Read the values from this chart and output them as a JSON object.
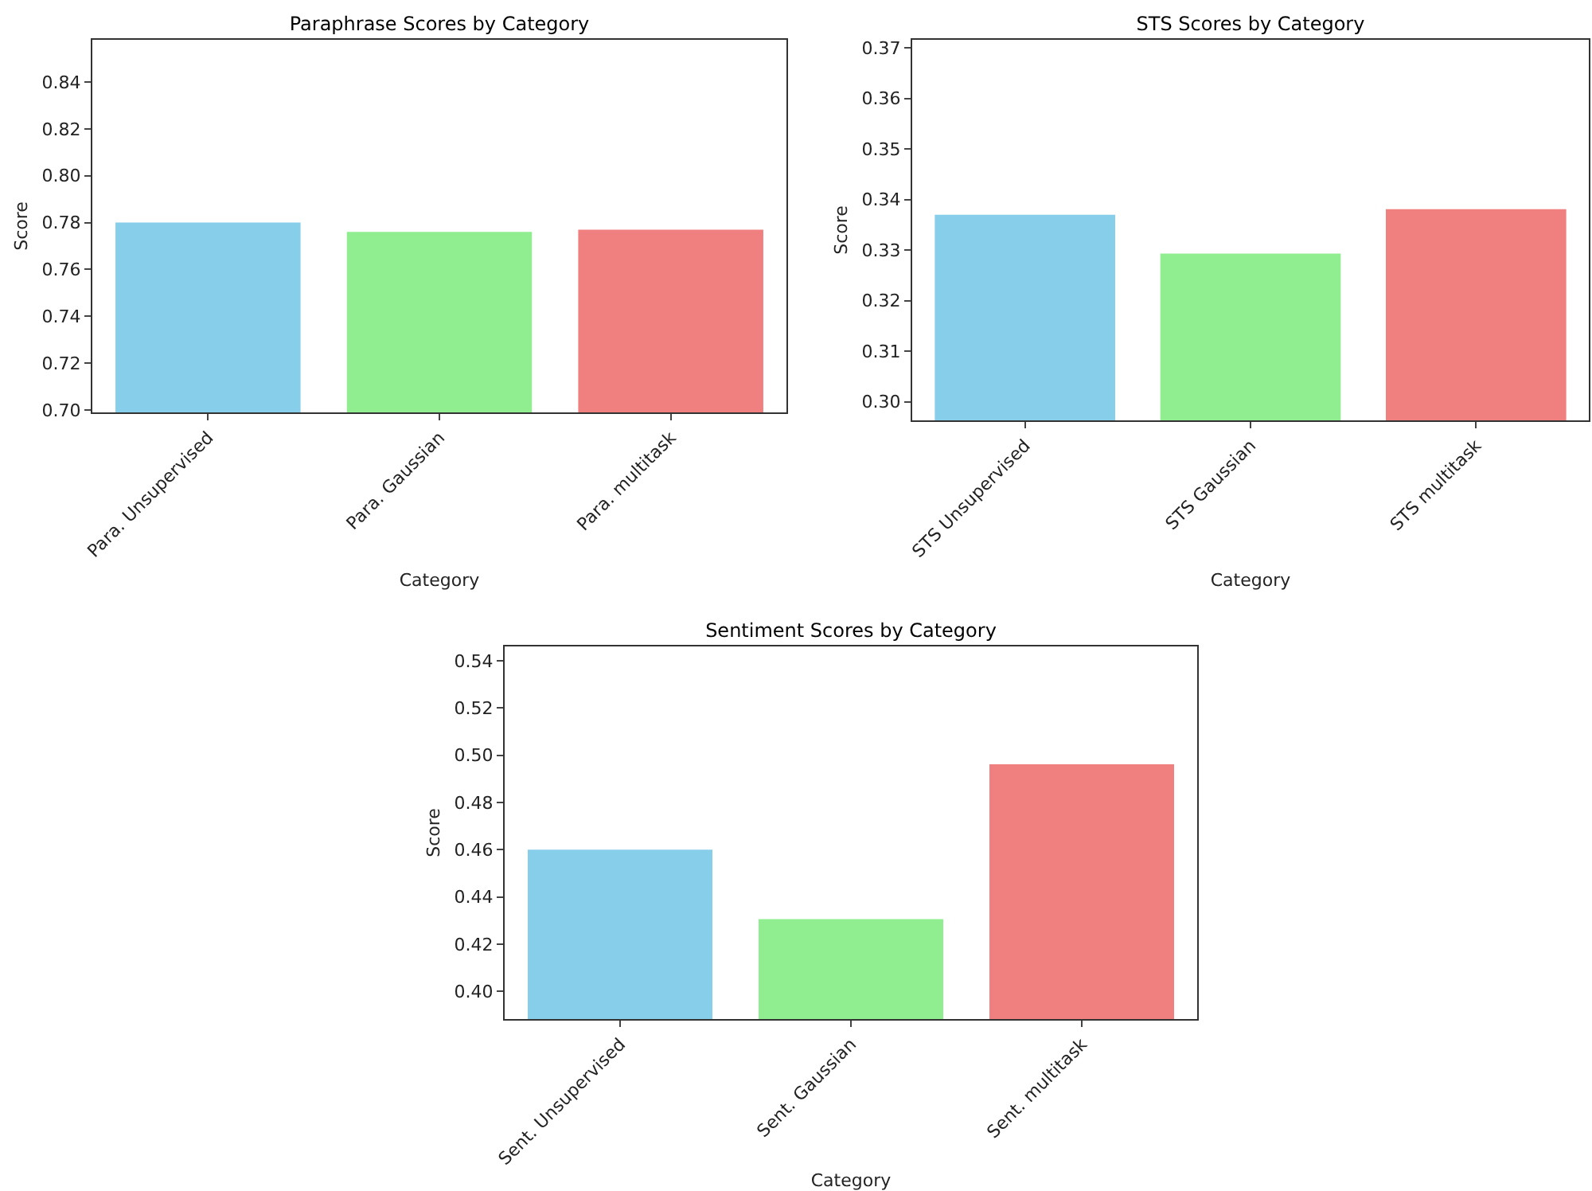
{
  "chart_data": [
    {
      "type": "bar",
      "title": "Paraphrase Scores by Category",
      "xlabel": "Category",
      "ylabel": "Score",
      "categories": [
        "Para. Unsupervised",
        "Para. Gaussian",
        "Para. multitask"
      ],
      "values": [
        0.78,
        0.776,
        0.777
      ],
      "colors": [
        "#87ceeb",
        "#90ee90",
        "#f08080"
      ],
      "ylim": [
        0.699,
        0.858
      ],
      "yticks": [
        {
          "value": 0.7,
          "label": "0.70"
        },
        0.72,
        0.74,
        0.76,
        0.78,
        {
          "value": 0.8,
          "label": "0.80"
        },
        0.82,
        0.84
      ]
    },
    {
      "type": "bar",
      "title": "STS Scores by Category",
      "xlabel": "Category",
      "ylabel": "Score",
      "categories": [
        "STS Unsupervised",
        "STS Gaussian",
        "STS multitask"
      ],
      "values": [
        0.337,
        0.3293,
        0.3381
      ],
      "colors": [
        "#87ceeb",
        "#90ee90",
        "#f08080"
      ],
      "ylim": [
        0.2963,
        0.3716
      ],
      "yticks": [
        {
          "value": 0.3,
          "label": "0.30"
        },
        0.31,
        0.32,
        0.33,
        0.34,
        0.35,
        0.36,
        0.37
      ]
    },
    {
      "type": "bar",
      "title": "Sentiment Scores by Category",
      "xlabel": "Category",
      "ylabel": "Score",
      "categories": [
        "Sent. Unsupervised",
        "Sent. Gaussian",
        "Sent. multitask"
      ],
      "values": [
        0.46,
        0.4306,
        0.4962
      ],
      "colors": [
        "#87ceeb",
        "#90ee90",
        "#f08080"
      ],
      "ylim": [
        0.3883,
        0.5461
      ],
      "yticks": [
        {
          "value": 0.4,
          "label": "0.40"
        },
        0.42,
        0.44,
        0.46,
        0.48,
        {
          "value": 0.5,
          "label": "0.50"
        },
        0.52,
        0.54
      ]
    }
  ]
}
